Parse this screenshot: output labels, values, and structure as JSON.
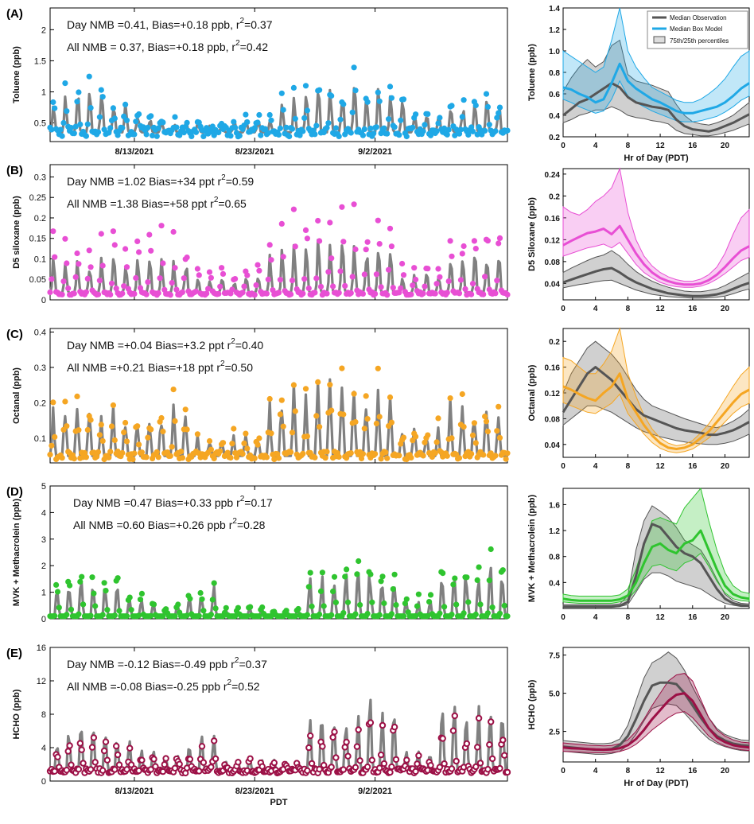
{
  "figure": {
    "bottom_xlabel": "PDT",
    "date_ticks": [
      "8/13/2021",
      "8/23/2021",
      "9/2/2021"
    ],
    "hour_xlabel": "Hr of Day (PDT)",
    "legend": {
      "observation": "Median Observation",
      "model": "Median Box Model",
      "percentiles": "75th/25th percentiles"
    }
  },
  "chart_data": [
    {
      "type": "line",
      "panel": "(A)",
      "ylabel": "Toluene (ppb)",
      "ylim": [
        0.2,
        2.35
      ],
      "yticks": [
        0.5,
        1.0,
        1.5,
        2.0
      ],
      "stats_day": "Day NMB =0.41, Bias=+0.18 ppb, r",
      "stats_day_r2": "=0.37",
      "stats_all": "All NMB = 0.37, Bias=+0.18 ppb,  r",
      "stats_all_r2": "=0.42",
      "sup": "2",
      "obs_color": "#808080",
      "model_color": "#1fa8e6",
      "diurnal": {
        "ylabel": "Toluene (ppb)",
        "ylim": [
          0.2,
          1.4
        ],
        "yticks": [
          0.2,
          0.4,
          0.6,
          0.8,
          1.0,
          1.2,
          1.4
        ],
        "hours": [
          0,
          1,
          2,
          3,
          4,
          5,
          6,
          7,
          8,
          9,
          10,
          11,
          12,
          13,
          14,
          15,
          16,
          17,
          18,
          19,
          20,
          21,
          22,
          23
        ],
        "obs_median": [
          0.4,
          0.46,
          0.52,
          0.55,
          0.6,
          0.65,
          0.7,
          0.66,
          0.57,
          0.52,
          0.5,
          0.48,
          0.47,
          0.45,
          0.36,
          0.3,
          0.27,
          0.26,
          0.25,
          0.27,
          0.3,
          0.33,
          0.37,
          0.41
        ],
        "obs_p25": [
          0.33,
          0.36,
          0.4,
          0.42,
          0.45,
          0.45,
          0.48,
          0.45,
          0.4,
          0.38,
          0.37,
          0.35,
          0.34,
          0.32,
          0.26,
          0.23,
          0.22,
          0.21,
          0.21,
          0.22,
          0.24,
          0.26,
          0.29,
          0.32
        ],
        "obs_p75": [
          0.62,
          0.75,
          0.85,
          0.92,
          0.85,
          0.9,
          1.05,
          1.1,
          0.78,
          0.72,
          0.7,
          0.68,
          0.65,
          0.62,
          0.5,
          0.4,
          0.34,
          0.32,
          0.31,
          0.33,
          0.36,
          0.4,
          0.46,
          0.52
        ],
        "model_median": [
          0.66,
          0.64,
          0.6,
          0.57,
          0.52,
          0.55,
          0.7,
          0.88,
          0.72,
          0.65,
          0.6,
          0.55,
          0.52,
          0.48,
          0.44,
          0.42,
          0.42,
          0.44,
          0.46,
          0.48,
          0.52,
          0.58,
          0.65,
          0.7
        ],
        "model_p25": [
          0.55,
          0.52,
          0.48,
          0.45,
          0.42,
          0.44,
          0.55,
          0.72,
          0.58,
          0.52,
          0.48,
          0.44,
          0.41,
          0.38,
          0.35,
          0.34,
          0.34,
          0.35,
          0.37,
          0.39,
          0.43,
          0.48,
          0.54,
          0.58
        ],
        "model_p75": [
          1.0,
          0.95,
          0.9,
          0.85,
          0.8,
          0.85,
          1.1,
          1.4,
          1.0,
          0.85,
          0.75,
          0.66,
          0.62,
          0.58,
          0.54,
          0.52,
          0.52,
          0.55,
          0.6,
          0.66,
          0.74,
          0.85,
          0.95,
          1.0
        ]
      }
    },
    {
      "type": "line",
      "panel": "(B)",
      "ylabel": "D5 siloxane (ppb)",
      "ylim": [
        0.0,
        0.33
      ],
      "yticks": [
        0.0,
        0.05,
        0.1,
        0.15,
        0.2,
        0.25,
        0.3
      ],
      "stats_day": "Day NMB =1.02 Bias=+34 ppt r",
      "stats_day_r2": "=0.59",
      "stats_all": "All NMB =1.38 Bias=+58 ppt r",
      "stats_all_r2": "=0.65",
      "sup": "2",
      "obs_color": "#808080",
      "model_color": "#e84fd4",
      "diurnal": {
        "ylabel": "D5 Siloxane (ppb)",
        "ylim": [
          0.01,
          0.25
        ],
        "yticks": [
          0.04,
          0.08,
          0.12,
          0.16,
          0.2,
          0.24
        ],
        "hours": [
          0,
          1,
          2,
          3,
          4,
          5,
          6,
          7,
          8,
          9,
          10,
          11,
          12,
          13,
          14,
          15,
          16,
          17,
          18,
          19,
          20,
          21,
          22,
          23
        ],
        "obs_median": [
          0.042,
          0.047,
          0.052,
          0.057,
          0.062,
          0.066,
          0.068,
          0.06,
          0.05,
          0.042,
          0.036,
          0.03,
          0.026,
          0.022,
          0.02,
          0.018,
          0.017,
          0.017,
          0.018,
          0.02,
          0.024,
          0.03,
          0.036,
          0.041
        ],
        "obs_p25": [
          0.032,
          0.035,
          0.038,
          0.04,
          0.043,
          0.045,
          0.046,
          0.04,
          0.034,
          0.028,
          0.024,
          0.02,
          0.018,
          0.016,
          0.015,
          0.014,
          0.013,
          0.013,
          0.014,
          0.015,
          0.017,
          0.021,
          0.026,
          0.03
        ],
        "obs_p75": [
          0.06,
          0.068,
          0.075,
          0.082,
          0.088,
          0.092,
          0.1,
          0.09,
          0.075,
          0.062,
          0.052,
          0.044,
          0.038,
          0.033,
          0.029,
          0.026,
          0.025,
          0.025,
          0.027,
          0.03,
          0.036,
          0.044,
          0.052,
          0.06
        ],
        "model_median": [
          0.11,
          0.118,
          0.125,
          0.132,
          0.135,
          0.14,
          0.13,
          0.145,
          0.12,
          0.095,
          0.075,
          0.06,
          0.05,
          0.044,
          0.04,
          0.038,
          0.038,
          0.04,
          0.046,
          0.056,
          0.07,
          0.086,
          0.1,
          0.108
        ],
        "model_p25": [
          0.09,
          0.095,
          0.1,
          0.105,
          0.108,
          0.112,
          0.105,
          0.115,
          0.095,
          0.075,
          0.06,
          0.05,
          0.042,
          0.037,
          0.034,
          0.033,
          0.033,
          0.035,
          0.04,
          0.048,
          0.058,
          0.07,
          0.082,
          0.088
        ],
        "model_p75": [
          0.18,
          0.17,
          0.165,
          0.175,
          0.19,
          0.2,
          0.215,
          0.25,
          0.17,
          0.12,
          0.09,
          0.072,
          0.06,
          0.052,
          0.047,
          0.044,
          0.044,
          0.048,
          0.056,
          0.07,
          0.095,
          0.13,
          0.16,
          0.175
        ]
      }
    },
    {
      "type": "line",
      "panel": "(C)",
      "ylabel": "Octanal (ppb)",
      "ylim": [
        0.03,
        0.41
      ],
      "yticks": [
        0.1,
        0.2,
        0.3,
        0.4
      ],
      "stats_day": "Day NMB =+0.04 Bias=+3.2 ppt r",
      "stats_day_r2": "=0.40",
      "stats_all": "All NMB =+0.21 Bias=+18 ppt r",
      "stats_all_r2": "=0.50",
      "sup": "2",
      "obs_color": "#808080",
      "model_color": "#f5a623",
      "diurnal": {
        "ylabel": "Octanal (ppb)",
        "ylim": [
          0.02,
          0.22
        ],
        "yticks": [
          0.04,
          0.08,
          0.12,
          0.16,
          0.2
        ],
        "hours": [
          0,
          1,
          2,
          3,
          4,
          5,
          6,
          7,
          8,
          9,
          10,
          11,
          12,
          13,
          14,
          15,
          16,
          17,
          18,
          19,
          20,
          21,
          22,
          23
        ],
        "obs_median": [
          0.09,
          0.11,
          0.13,
          0.15,
          0.16,
          0.15,
          0.14,
          0.125,
          0.11,
          0.095,
          0.085,
          0.08,
          0.075,
          0.07,
          0.065,
          0.062,
          0.06,
          0.058,
          0.055,
          0.055,
          0.058,
          0.062,
          0.068,
          0.075
        ],
        "obs_p25": [
          0.07,
          0.08,
          0.09,
          0.1,
          0.1,
          0.095,
          0.09,
          0.082,
          0.074,
          0.066,
          0.06,
          0.056,
          0.052,
          0.049,
          0.046,
          0.044,
          0.042,
          0.041,
          0.04,
          0.04,
          0.042,
          0.045,
          0.05,
          0.056
        ],
        "obs_p75": [
          0.12,
          0.15,
          0.17,
          0.19,
          0.2,
          0.19,
          0.18,
          0.165,
          0.145,
          0.125,
          0.11,
          0.1,
          0.095,
          0.09,
          0.085,
          0.08,
          0.076,
          0.072,
          0.068,
          0.066,
          0.07,
          0.076,
          0.084,
          0.095
        ],
        "model_median": [
          0.13,
          0.125,
          0.118,
          0.112,
          0.108,
          0.12,
          0.13,
          0.15,
          0.11,
          0.09,
          0.07,
          0.054,
          0.042,
          0.035,
          0.033,
          0.035,
          0.04,
          0.05,
          0.06,
          0.075,
          0.09,
          0.105,
          0.118,
          0.125
        ],
        "model_p25": [
          0.105,
          0.1,
          0.095,
          0.09,
          0.088,
          0.096,
          0.104,
          0.118,
          0.088,
          0.072,
          0.056,
          0.043,
          0.034,
          0.029,
          0.027,
          0.029,
          0.033,
          0.041,
          0.05,
          0.062,
          0.075,
          0.088,
          0.098,
          0.104
        ],
        "model_p75": [
          0.175,
          0.17,
          0.16,
          0.15,
          0.15,
          0.165,
          0.185,
          0.22,
          0.15,
          0.115,
          0.085,
          0.064,
          0.05,
          0.042,
          0.038,
          0.04,
          0.046,
          0.058,
          0.072,
          0.09,
          0.11,
          0.13,
          0.148,
          0.16
        ]
      }
    },
    {
      "type": "line",
      "panel": "(D)",
      "ylabel": "MVK + Methacrolein (ppb)",
      "ylim": [
        0,
        5
      ],
      "yticks": [
        0,
        1,
        2,
        3,
        4,
        5
      ],
      "stats_day": "Day NMB =0.47 Bias=+0.33 ppb r",
      "stats_day_r2": "=0.17",
      "stats_all": "All  NMB =0.60 Bias=+0.26 ppb r",
      "stats_all_r2": "=0.28",
      "sup": "2",
      "obs_color": "#808080",
      "model_color": "#2fc42f",
      "diurnal": {
        "ylabel": "MVK + Methacrolein (ppb)",
        "ylim": [
          0,
          1.85
        ],
        "yticks": [
          0.4,
          0.8,
          1.2,
          1.6
        ],
        "hours": [
          0,
          1,
          2,
          3,
          4,
          5,
          6,
          7,
          8,
          9,
          10,
          11,
          12,
          13,
          14,
          15,
          16,
          17,
          18,
          19,
          20,
          21,
          22,
          23
        ],
        "obs_median": [
          0.03,
          0.03,
          0.03,
          0.03,
          0.03,
          0.03,
          0.03,
          0.04,
          0.1,
          0.5,
          1.0,
          1.3,
          1.25,
          1.1,
          0.95,
          0.85,
          0.8,
          0.7,
          0.5,
          0.3,
          0.15,
          0.08,
          0.05,
          0.04
        ],
        "obs_p25": [
          0.02,
          0.02,
          0.02,
          0.02,
          0.02,
          0.02,
          0.02,
          0.03,
          0.06,
          0.25,
          0.45,
          0.55,
          0.55,
          0.5,
          0.42,
          0.38,
          0.34,
          0.3,
          0.22,
          0.14,
          0.08,
          0.05,
          0.03,
          0.03
        ],
        "obs_p75": [
          0.06,
          0.06,
          0.06,
          0.06,
          0.06,
          0.06,
          0.06,
          0.07,
          0.2,
          0.9,
          1.35,
          1.58,
          1.5,
          1.4,
          1.25,
          1.05,
          0.98,
          0.9,
          0.7,
          0.45,
          0.22,
          0.12,
          0.08,
          0.07
        ],
        "model_median": [
          0.15,
          0.13,
          0.12,
          0.12,
          0.12,
          0.12,
          0.12,
          0.14,
          0.2,
          0.4,
          0.7,
          0.95,
          1.0,
          0.9,
          0.85,
          1.0,
          1.05,
          1.2,
          0.9,
          0.6,
          0.35,
          0.22,
          0.17,
          0.15
        ],
        "model_p25": [
          0.1,
          0.09,
          0.08,
          0.08,
          0.08,
          0.08,
          0.08,
          0.1,
          0.14,
          0.28,
          0.48,
          0.65,
          0.68,
          0.62,
          0.58,
          0.7,
          0.75,
          0.85,
          0.65,
          0.42,
          0.24,
          0.15,
          0.12,
          0.11
        ],
        "model_p75": [
          0.22,
          0.2,
          0.19,
          0.19,
          0.19,
          0.19,
          0.19,
          0.21,
          0.3,
          0.6,
          1.0,
          1.35,
          1.4,
          1.35,
          1.3,
          1.55,
          1.7,
          1.85,
          1.35,
          0.9,
          0.55,
          0.35,
          0.26,
          0.23
        ]
      }
    },
    {
      "type": "line",
      "panel": "(E)",
      "ylabel": "HCHO (ppb)",
      "ylim": [
        0,
        16
      ],
      "yticks": [
        0,
        4,
        8,
        12,
        16
      ],
      "stats_day": "Day NMB =-0.12 Bias=-0.49 ppb r",
      "stats_day_r2": "=0.37",
      "stats_all": "All NMB =-0.08 Bias=-0.25 ppb r",
      "stats_all_r2": "=0.52",
      "sup": "2",
      "obs_color": "#808080",
      "model_color": "#9c1046",
      "diurnal": {
        "ylabel": "HCHO (ppb)",
        "ylim": [
          0.5,
          8
        ],
        "yticks": [
          2.5,
          5.0,
          7.5
        ],
        "hours": [
          0,
          1,
          2,
          3,
          4,
          5,
          6,
          7,
          8,
          9,
          10,
          11,
          12,
          13,
          14,
          15,
          16,
          17,
          18,
          19,
          20,
          21,
          22,
          23
        ],
        "obs_median": [
          1.5,
          1.45,
          1.4,
          1.35,
          1.3,
          1.3,
          1.35,
          1.6,
          2.2,
          3.3,
          4.5,
          5.5,
          5.7,
          5.7,
          5.6,
          5.0,
          4.2,
          3.4,
          2.7,
          2.2,
          1.9,
          1.7,
          1.6,
          1.55
        ],
        "obs_p25": [
          1.2,
          1.15,
          1.1,
          1.05,
          1.0,
          1.0,
          1.05,
          1.2,
          1.6,
          2.3,
          3.2,
          4.0,
          4.2,
          4.3,
          4.2,
          3.7,
          3.1,
          2.5,
          2.0,
          1.7,
          1.5,
          1.35,
          1.25,
          1.22
        ],
        "obs_p75": [
          1.9,
          1.85,
          1.8,
          1.75,
          1.7,
          1.7,
          1.75,
          2.0,
          2.9,
          4.5,
          6.0,
          7.0,
          7.3,
          7.7,
          7.3,
          6.5,
          5.4,
          4.4,
          3.4,
          2.7,
          2.3,
          2.1,
          1.95,
          1.9
        ],
        "model_median": [
          1.45,
          1.4,
          1.38,
          1.35,
          1.32,
          1.3,
          1.32,
          1.4,
          1.6,
          2.0,
          2.6,
          3.3,
          3.9,
          4.5,
          4.9,
          5.0,
          4.5,
          3.6,
          2.7,
          2.1,
          1.8,
          1.6,
          1.5,
          1.45
        ],
        "model_p25": [
          1.2,
          1.17,
          1.15,
          1.12,
          1.1,
          1.1,
          1.12,
          1.18,
          1.35,
          1.65,
          2.1,
          2.6,
          3.0,
          3.4,
          3.7,
          3.8,
          3.4,
          2.8,
          2.2,
          1.8,
          1.55,
          1.4,
          1.3,
          1.25
        ],
        "model_p75": [
          1.75,
          1.7,
          1.65,
          1.6,
          1.58,
          1.55,
          1.58,
          1.7,
          1.95,
          2.5,
          3.3,
          4.2,
          5.0,
          5.8,
          6.2,
          6.3,
          5.8,
          4.6,
          3.4,
          2.6,
          2.2,
          1.95,
          1.8,
          1.75
        ]
      }
    }
  ]
}
